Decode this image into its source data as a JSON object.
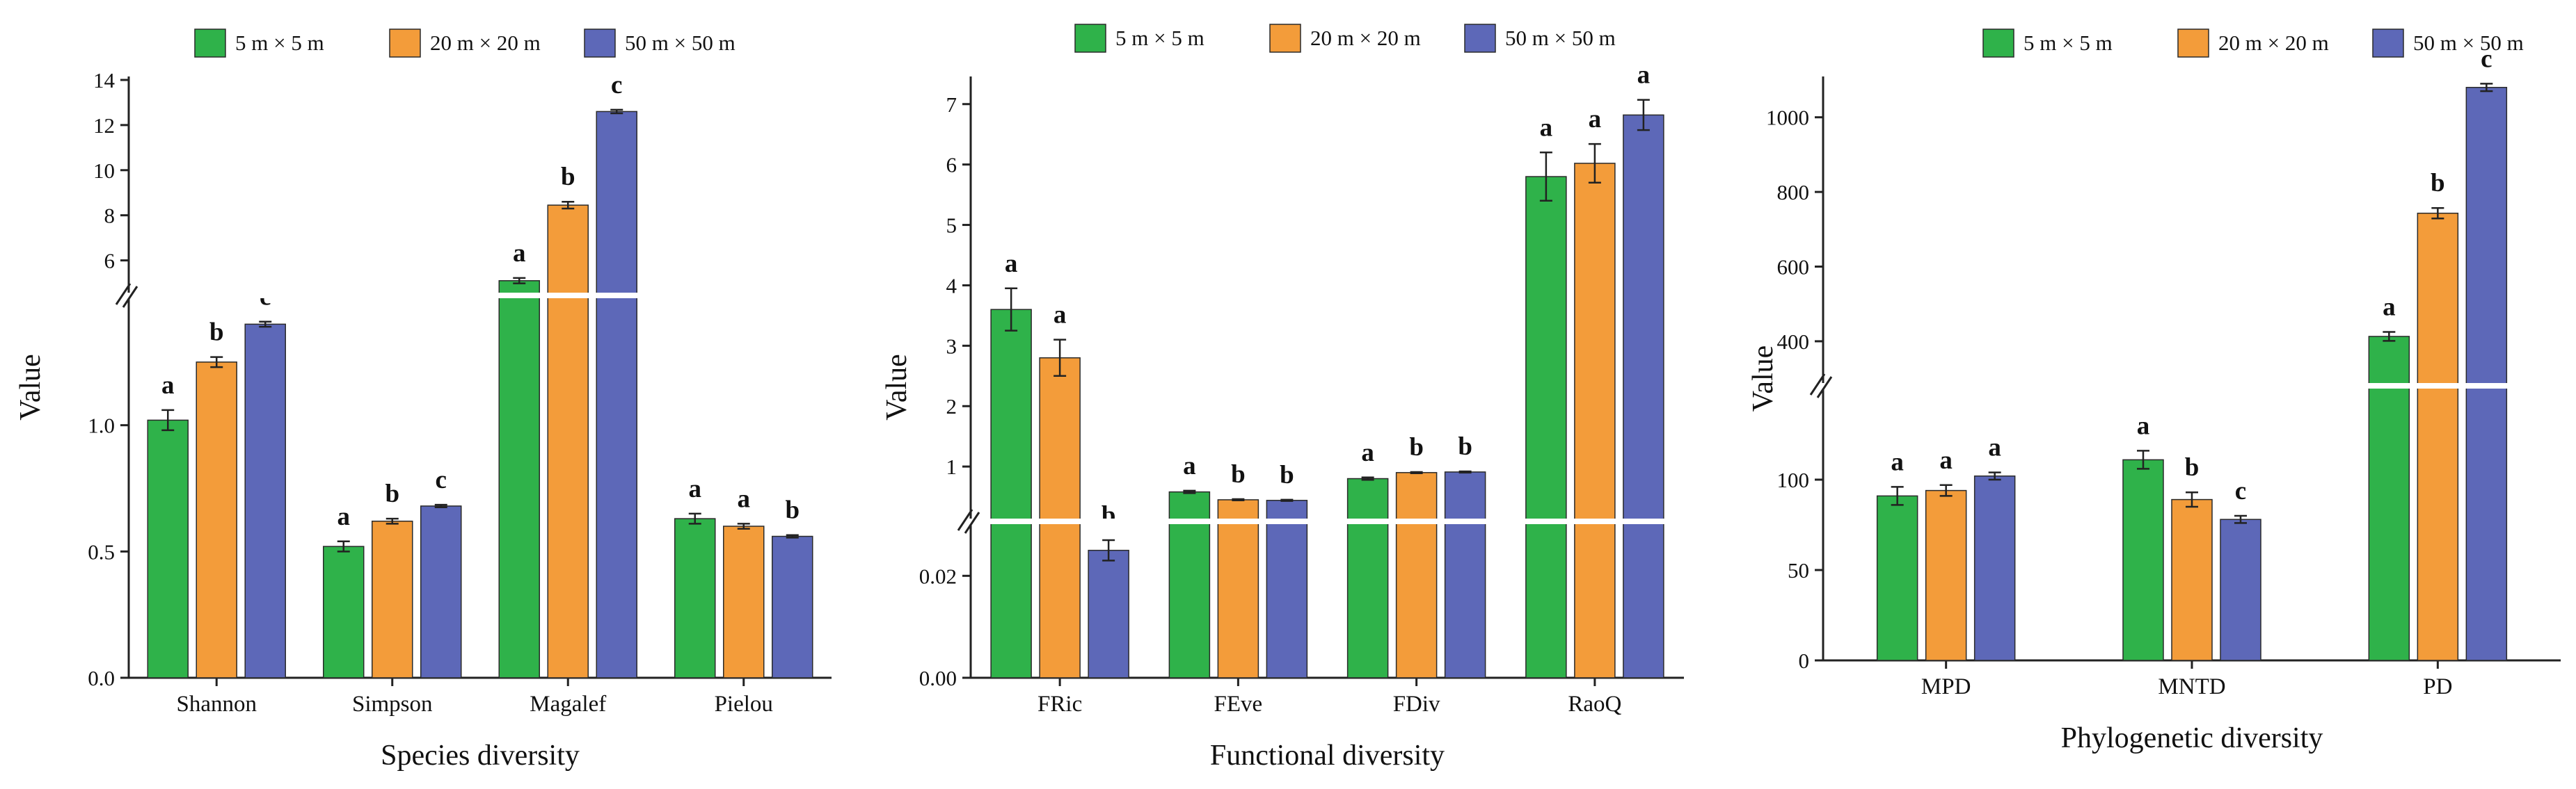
{
  "colors": {
    "small": "#2fb24a",
    "medium": "#f39c3a",
    "large": "#5d68b8"
  },
  "legend": [
    "5 m × 5 m",
    "20 m × 20 m",
    "50 m × 50 m"
  ],
  "chart_data": [
    {
      "type": "bar",
      "title": "",
      "xlabel": "Species diversity",
      "ylabel": "Value",
      "categories": [
        "Shannon",
        "Simpson",
        "Magalef",
        "Pielou"
      ],
      "series": [
        {
          "name": "5 m × 5 m",
          "values": [
            1.02,
            0.52,
            5.1,
            0.63
          ],
          "errors": [
            0.04,
            0.02,
            0.12,
            0.02
          ],
          "letters": [
            "a",
            "a",
            "a",
            "a"
          ]
        },
        {
          "name": "20 m × 20 m",
          "values": [
            1.25,
            0.62,
            8.45,
            0.6
          ],
          "errors": [
            0.02,
            0.01,
            0.15,
            0.01
          ],
          "letters": [
            "b",
            "b",
            "b",
            "a"
          ]
        },
        {
          "name": "50 m × 50 m",
          "values": [
            1.4,
            0.68,
            12.6,
            0.56
          ],
          "errors": [
            0.01,
            0.005,
            0.08,
            0.005
          ],
          "letters": [
            "c",
            "c",
            "c",
            "b"
          ]
        }
      ],
      "y_break": {
        "lower": [
          0.0,
          1.5
        ],
        "upper": [
          4.6,
          14.0
        ]
      },
      "lower_ticks": [
        0.0,
        0.5,
        1.0
      ],
      "lower_tick_labels": [
        "0.0",
        "0.5",
        "1.0"
      ],
      "upper_ticks": [
        6,
        8,
        10,
        12,
        14
      ],
      "upper_tick_labels": [
        "6",
        "8",
        "10",
        "12",
        "14"
      ]
    },
    {
      "type": "bar",
      "title": "",
      "xlabel": "Functional diversity",
      "ylabel": "Value",
      "categories": [
        "FRic",
        "FEve",
        "FDiv",
        "RaoQ"
      ],
      "series": [
        {
          "name": "5 m × 5 m",
          "values": [
            3.6,
            0.58,
            0.8,
            5.8
          ],
          "errors": [
            0.35,
            0.02,
            0.02,
            0.4
          ],
          "letters": [
            "a",
            "a",
            "a",
            "a"
          ]
        },
        {
          "name": "20 m × 20 m",
          "values": [
            2.8,
            0.45,
            0.9,
            6.02
          ],
          "errors": [
            0.3,
            0.01,
            0.01,
            0.32
          ],
          "letters": [
            "a",
            "b",
            "b",
            "a"
          ]
        },
        {
          "name": "50 m × 50 m",
          "values": [
            0.025,
            0.44,
            0.91,
            6.82
          ],
          "errors": [
            0.002,
            0.01,
            0.01,
            0.25
          ],
          "letters": [
            "b",
            "b",
            "b",
            "a"
          ]
        }
      ],
      "y_break": {
        "lower": [
          0.0,
          0.03
        ],
        "upper": [
          0.15,
          7.4
        ]
      },
      "lower_ticks": [
        0.0,
        0.02
      ],
      "lower_tick_labels": [
        "0.00",
        "0.02"
      ],
      "upper_ticks": [
        1,
        2,
        3,
        4,
        5,
        6,
        7
      ],
      "upper_tick_labels": [
        "1",
        "2",
        "3",
        "4",
        "5",
        "6",
        "7"
      ]
    },
    {
      "type": "bar",
      "title": "",
      "xlabel": "Phylogenetic diversity",
      "ylabel": "Value",
      "categories": [
        "MPD",
        "MNTD",
        "PD"
      ],
      "series": [
        {
          "name": "5 m × 5 m",
          "values": [
            91,
            111,
            413
          ],
          "errors": [
            5,
            5,
            12
          ],
          "letters": [
            "a",
            "a",
            "a"
          ]
        },
        {
          "name": "20 m × 20 m",
          "values": [
            94,
            89,
            743
          ],
          "errors": [
            3,
            4,
            14
          ],
          "letters": [
            "a",
            "b",
            "b"
          ]
        },
        {
          "name": "50 m × 50 m",
          "values": [
            102,
            78,
            1080
          ],
          "errors": [
            2,
            2,
            10
          ],
          "letters": [
            "a",
            "c",
            "c"
          ]
        }
      ],
      "y_break": {
        "lower": [
          0,
          150
        ],
        "upper": [
          290,
          1100
        ]
      },
      "lower_ticks": [
        0,
        50,
        100
      ],
      "lower_tick_labels": [
        "0",
        "50",
        "100"
      ],
      "upper_ticks": [
        400,
        600,
        800,
        1000
      ],
      "upper_tick_labels": [
        "400",
        "600",
        "800",
        "1000"
      ]
    }
  ]
}
